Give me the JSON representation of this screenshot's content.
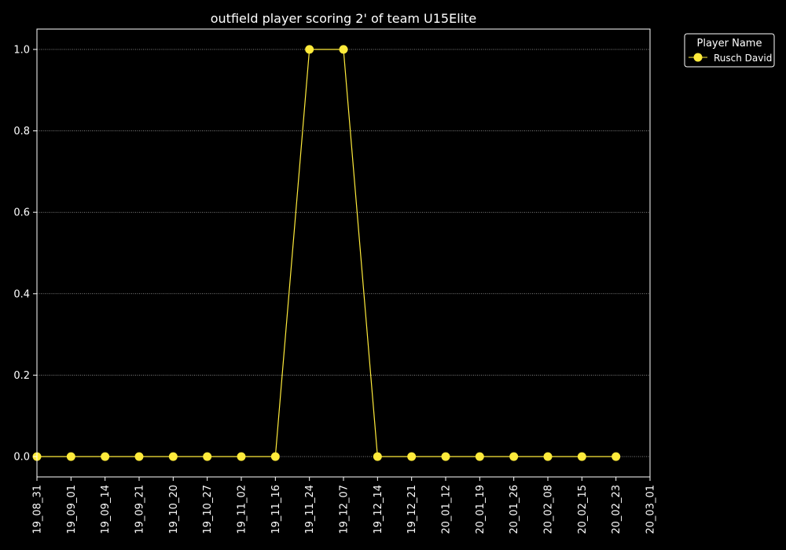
{
  "chart_data": {
    "type": "line",
    "title": "outfield player scoring 2' of team U15Elite",
    "xlabel": "",
    "ylabel": "",
    "x_ticks": [
      "19_08_31",
      "19_09_01",
      "19_09_14",
      "19_09_21",
      "19_10_20",
      "19_10_27",
      "19_11_02",
      "19_11_16",
      "19_11_24",
      "19_12_07",
      "19_12_14",
      "19_12_21",
      "20_01_12",
      "20_01_19",
      "20_01_26",
      "20_02_08",
      "20_02_15",
      "20_02_23",
      "20_03_01"
    ],
    "y_ticks": [
      "0.0",
      "0.2",
      "0.4",
      "0.6",
      "0.8",
      "1.0"
    ],
    "ylim": [
      -0.05,
      1.05
    ],
    "grid": "horizontal dotted",
    "legend": {
      "title": "Player Name",
      "placement": "outside top-right"
    },
    "series": [
      {
        "name": "Rusch David",
        "color": "#ffeb3b",
        "x": [
          "19_08_31",
          "19_09_01",
          "19_09_14",
          "19_09_21",
          "19_10_20",
          "19_10_27",
          "19_11_02",
          "19_11_16",
          "19_11_24",
          "19_12_07",
          "19_12_14",
          "19_12_21",
          "20_01_12",
          "20_01_19",
          "20_01_26",
          "20_02_08",
          "20_02_15",
          "20_02_23"
        ],
        "values": [
          0,
          0,
          0,
          0,
          0,
          0,
          0,
          0,
          1,
          1,
          0,
          0,
          0,
          0,
          0,
          0,
          0,
          0
        ]
      }
    ]
  }
}
